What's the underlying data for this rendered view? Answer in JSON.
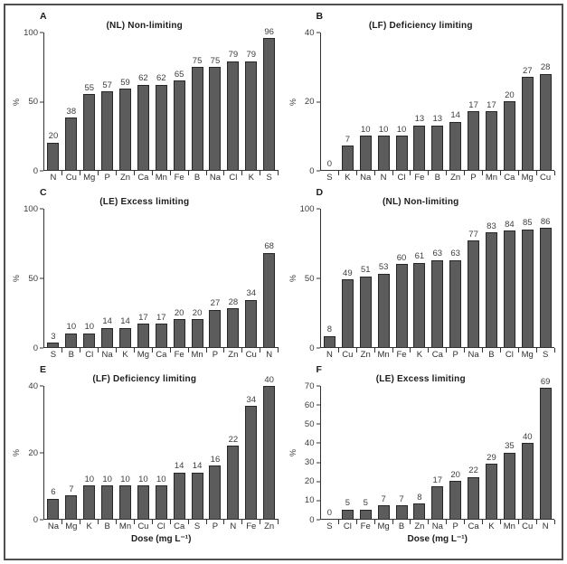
{
  "figure": {
    "y_axis_unit": "%",
    "dose_axis_label": "Dose (mg L⁻¹)"
  },
  "chart_data": [
    {
      "type": "bar",
      "panel": "A",
      "title": "(NL) Non-limiting",
      "ylabel": "%",
      "xlabel": "",
      "ylim": [
        0,
        100
      ],
      "yticks": [
        0,
        50,
        100
      ],
      "grid": false,
      "legend": false,
      "categories": [
        "N",
        "Cu",
        "Mg",
        "P",
        "Zn",
        "Ca",
        "Mn",
        "Fe",
        "B",
        "Na",
        "Cl",
        "K",
        "S"
      ],
      "values": [
        20,
        38,
        55,
        57,
        59,
        62,
        62,
        65,
        75,
        75,
        79,
        79,
        96
      ]
    },
    {
      "type": "bar",
      "panel": "B",
      "title": "(LF) Deficiency limiting",
      "ylabel": "%",
      "xlabel": "",
      "ylim": [
        0,
        40
      ],
      "yticks": [
        0,
        20,
        40
      ],
      "grid": false,
      "legend": false,
      "categories": [
        "S",
        "K",
        "Na",
        "N",
        "Cl",
        "Fe",
        "B",
        "Zn",
        "P",
        "Mn",
        "Ca",
        "Mg",
        "Cu"
      ],
      "values": [
        0,
        7,
        10,
        10,
        10,
        13,
        13,
        14,
        17,
        17,
        20,
        27,
        28
      ]
    },
    {
      "type": "bar",
      "panel": "C",
      "title": "(LE) Excess limiting",
      "ylabel": "%",
      "xlabel": "",
      "ylim": [
        0,
        100
      ],
      "yticks": [
        0,
        50,
        100
      ],
      "grid": false,
      "legend": false,
      "categories": [
        "S",
        "B",
        "Cl",
        "Na",
        "K",
        "Mg",
        "Ca",
        "Fe",
        "Mn",
        "P",
        "Zn",
        "Cu",
        "N"
      ],
      "values": [
        3,
        10,
        10,
        14,
        14,
        17,
        17,
        20,
        20,
        27,
        28,
        34,
        68
      ]
    },
    {
      "type": "bar",
      "panel": "D",
      "title": "(NL) Non-limiting",
      "ylabel": "%",
      "xlabel": "",
      "ylim": [
        0,
        100
      ],
      "yticks": [
        0,
        50,
        100
      ],
      "grid": false,
      "legend": false,
      "categories": [
        "N",
        "Cu",
        "Zn",
        "Mn",
        "Fe",
        "K",
        "Ca",
        "P",
        "Na",
        "B",
        "Cl",
        "Mg",
        "S"
      ],
      "values": [
        8,
        49,
        51,
        53,
        60,
        61,
        63,
        63,
        77,
        83,
        84,
        85,
        86
      ]
    },
    {
      "type": "bar",
      "panel": "E",
      "title": "(LF) Deficiency limiting",
      "ylabel": "%",
      "xlabel": "Dose (mg L⁻¹)",
      "ylim": [
        0,
        40
      ],
      "yticks": [
        0,
        20,
        40
      ],
      "grid": false,
      "legend": false,
      "categories": [
        "Na",
        "Mg",
        "K",
        "B",
        "Mn",
        "Cu",
        "Cl",
        "Ca",
        "S",
        "P",
        "N",
        "Fe",
        "Zn"
      ],
      "values": [
        6,
        7,
        10,
        10,
        10,
        10,
        10,
        14,
        14,
        16,
        22,
        34,
        40
      ]
    },
    {
      "type": "bar",
      "panel": "F",
      "title": "(LE) Excess limiting",
      "ylabel": "%",
      "xlabel": "Dose (mg L⁻¹)",
      "ylim": [
        0,
        70
      ],
      "yticks": [
        0,
        10,
        20,
        30,
        40,
        50,
        60,
        70
      ],
      "grid": false,
      "legend": false,
      "categories": [
        "S",
        "Cl",
        "Fe",
        "Mg",
        "B",
        "Zn",
        "Na",
        "P",
        "Ca",
        "K",
        "Mn",
        "Cu",
        "N"
      ],
      "values": [
        0,
        5,
        5,
        7,
        7,
        8,
        17,
        20,
        22,
        29,
        35,
        40,
        69
      ]
    }
  ]
}
